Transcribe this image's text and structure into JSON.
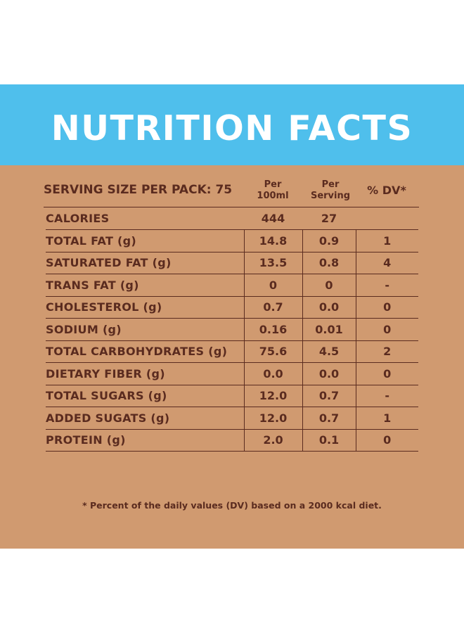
{
  "banner": {
    "title": "NUTRITION FACTS"
  },
  "table": {
    "serving_label": "SERVING SIZE PER PACK: 75",
    "headers": {
      "per100_line1": "Per",
      "per100_line2": "100ml",
      "perserv_line1": "Per",
      "perserv_line2": "Serving",
      "dv": "% DV*"
    },
    "rows": [
      {
        "label": "CALORIES",
        "per100": "444",
        "serving": "27",
        "dv": ""
      },
      {
        "label": "TOTAL FAT (g)",
        "per100": "14.8",
        "serving": "0.9",
        "dv": "1"
      },
      {
        "label": "SATURATED FAT (g)",
        "per100": "13.5",
        "serving": "0.8",
        "dv": "4"
      },
      {
        "label": "TRANS FAT (g)",
        "per100": "0",
        "serving": "0",
        "dv": "-"
      },
      {
        "label": "CHOLESTEROL (g)",
        "per100": "0.7",
        "serving": "0.0",
        "dv": "0"
      },
      {
        "label": "SODIUM (g)",
        "per100": "0.16",
        "serving": "0.01",
        "dv": "0"
      },
      {
        "label": "TOTAL CARBOHYDRATES (g)",
        "per100": "75.6",
        "serving": "4.5",
        "dv": "2"
      },
      {
        "label": "DIETARY FIBER (g)",
        "per100": "0.0",
        "serving": "0.0",
        "dv": "0"
      },
      {
        "label": "TOTAL SUGARS (g)",
        "per100": "12.0",
        "serving": "0.7",
        "dv": "-"
      },
      {
        "label": "ADDED SUGATS (g)",
        "per100": "12.0",
        "serving": "0.7",
        "dv": "1"
      },
      {
        "label": "PROTEIN (g)",
        "per100": "2.0",
        "serving": "0.1",
        "dv": "0"
      }
    ]
  },
  "footnote": "* Percent of the daily values (DV) based on a 2000 kcal diet.",
  "colors": {
    "banner": "#4fbfec",
    "panel": "#d09a70",
    "text": "#5a2b1f"
  }
}
